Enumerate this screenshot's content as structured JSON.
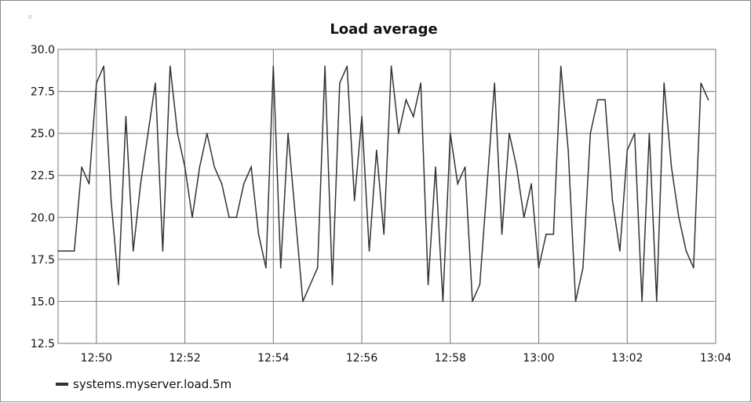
{
  "chart_data": {
    "type": "line",
    "title": "Load average",
    "xlabel": "",
    "ylabel": "",
    "ylim": [
      12.5,
      30.0
    ],
    "xlim": [
      "12:49:08",
      "13:04:00"
    ],
    "y_ticks": [
      "30.0",
      "27.5",
      "25.0",
      "22.5",
      "20.0",
      "17.5",
      "15.0",
      "12.5"
    ],
    "x_ticks": [
      "12:50",
      "12:52",
      "12:54",
      "12:56",
      "12:58",
      "13:00",
      "13:02",
      "13:04"
    ],
    "grid": true,
    "legend_position": "bottom-left",
    "series": [
      {
        "name": "systems.myserver.load.5m",
        "color": "#333333",
        "x": [
          "12:49:08",
          "12:49:20",
          "12:49:30",
          "12:49:40",
          "12:49:50",
          "12:50:00",
          "12:50:10",
          "12:50:20",
          "12:50:30",
          "12:50:40",
          "12:50:50",
          "12:51:00",
          "12:51:10",
          "12:51:20",
          "12:51:30",
          "12:51:40",
          "12:51:50",
          "12:52:00",
          "12:52:10",
          "12:52:20",
          "12:52:30",
          "12:52:40",
          "12:52:50",
          "12:53:00",
          "12:53:10",
          "12:53:20",
          "12:53:30",
          "12:53:40",
          "12:53:50",
          "12:54:00",
          "12:54:10",
          "12:54:20",
          "12:54:30",
          "12:54:40",
          "12:54:50",
          "12:55:00",
          "12:55:10",
          "12:55:20",
          "12:55:30",
          "12:55:40",
          "12:55:50",
          "12:56:00",
          "12:56:10",
          "12:56:20",
          "12:56:30",
          "12:56:40",
          "12:56:50",
          "12:57:00",
          "12:57:10",
          "12:57:20",
          "12:57:30",
          "12:57:40",
          "12:57:50",
          "12:58:00",
          "12:58:10",
          "12:58:20",
          "12:58:30",
          "12:58:40",
          "12:58:50",
          "12:59:00",
          "12:59:10",
          "12:59:20",
          "12:59:30",
          "12:59:40",
          "12:59:50",
          "13:00:00",
          "13:00:10",
          "13:00:20",
          "13:00:30",
          "13:00:40",
          "13:00:50",
          "13:01:00",
          "13:01:10",
          "13:01:20",
          "13:01:30",
          "13:01:40",
          "13:01:50",
          "13:02:00",
          "13:02:10",
          "13:02:20",
          "13:02:30",
          "13:02:40",
          "13:02:50",
          "13:03:00",
          "13:03:10",
          "13:03:20",
          "13:03:30",
          "13:03:40",
          "13:03:50"
        ],
        "values": [
          18,
          18,
          18,
          23,
          22,
          28,
          29,
          21,
          16,
          26,
          18,
          22,
          25,
          28,
          18,
          29,
          25,
          23,
          20,
          23,
          25,
          23,
          22,
          20,
          20,
          22,
          23,
          19,
          17,
          29,
          17,
          25,
          20,
          15,
          16,
          17,
          29,
          16,
          28,
          29,
          21,
          26,
          18,
          24,
          19,
          29,
          25,
          27,
          26,
          28,
          16,
          23,
          15,
          25,
          22,
          23,
          15,
          16,
          22,
          28,
          19,
          25,
          23,
          20,
          22,
          17,
          19,
          19,
          29,
          24,
          15,
          17,
          25,
          27,
          27,
          21,
          18,
          24,
          25,
          15,
          25,
          15,
          28,
          23,
          20,
          18,
          17,
          28,
          27
        ]
      }
    ]
  }
}
